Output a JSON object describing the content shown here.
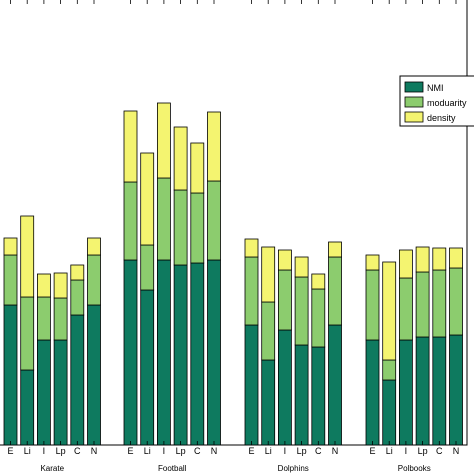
{
  "chart_data": {
    "type": "bar",
    "stacked": true,
    "ylim": [
      0,
      3.2
    ],
    "grid": false,
    "legend_placement": "top-right",
    "colors": {
      "NMI": "#0e7a5f",
      "moduarity": "#8ccc6e",
      "density": "#f4f470"
    },
    "series": [
      {
        "name": "NMI",
        "legend_label": "NMI"
      },
      {
        "name": "moduarity",
        "legend_label": "moduarity"
      },
      {
        "name": "density",
        "legend_label": "density"
      }
    ],
    "groups": [
      {
        "label": "Karate",
        "categories": [
          "E",
          "Li",
          "I",
          "Lp",
          "C",
          "N"
        ],
        "stacks": [
          [
            1.4,
            0.5,
            0.17
          ],
          [
            0.75,
            0.73,
            0.81
          ],
          [
            1.05,
            0.43,
            0.23
          ],
          [
            1.05,
            0.42,
            0.25
          ],
          [
            1.3,
            0.35,
            0.15
          ],
          [
            1.4,
            0.5,
            0.17
          ]
        ]
      },
      {
        "label": "Football",
        "categories": [
          "E",
          "Li",
          "I",
          "Lp",
          "C",
          "N"
        ],
        "stacks": [
          [
            1.85,
            0.78,
            0.71
          ],
          [
            1.55,
            0.45,
            0.92
          ],
          [
            1.85,
            0.82,
            0.75
          ],
          [
            1.8,
            0.75,
            0.63
          ],
          [
            1.82,
            0.7,
            0.5
          ],
          [
            1.85,
            0.79,
            0.69
          ]
        ]
      },
      {
        "label": "Dolphins",
        "categories": [
          "E",
          "Li",
          "I",
          "Lp",
          "C",
          "N"
        ],
        "stacks": [
          [
            1.2,
            0.68,
            0.18
          ],
          [
            0.85,
            0.58,
            0.55
          ],
          [
            1.15,
            0.6,
            0.2
          ],
          [
            1.0,
            0.68,
            0.2
          ],
          [
            0.98,
            0.58,
            0.15
          ],
          [
            1.2,
            0.68,
            0.15
          ]
        ]
      },
      {
        "label": "Polbooks",
        "categories": [
          "E",
          "Li",
          "I",
          "Lp",
          "C",
          "N"
        ],
        "stacks": [
          [
            1.05,
            0.7,
            0.15
          ],
          [
            0.65,
            0.2,
            0.98
          ],
          [
            1.05,
            0.62,
            0.28
          ],
          [
            1.08,
            0.65,
            0.25
          ],
          [
            1.08,
            0.67,
            0.22
          ],
          [
            1.1,
            0.67,
            0.2
          ]
        ]
      }
    ]
  }
}
